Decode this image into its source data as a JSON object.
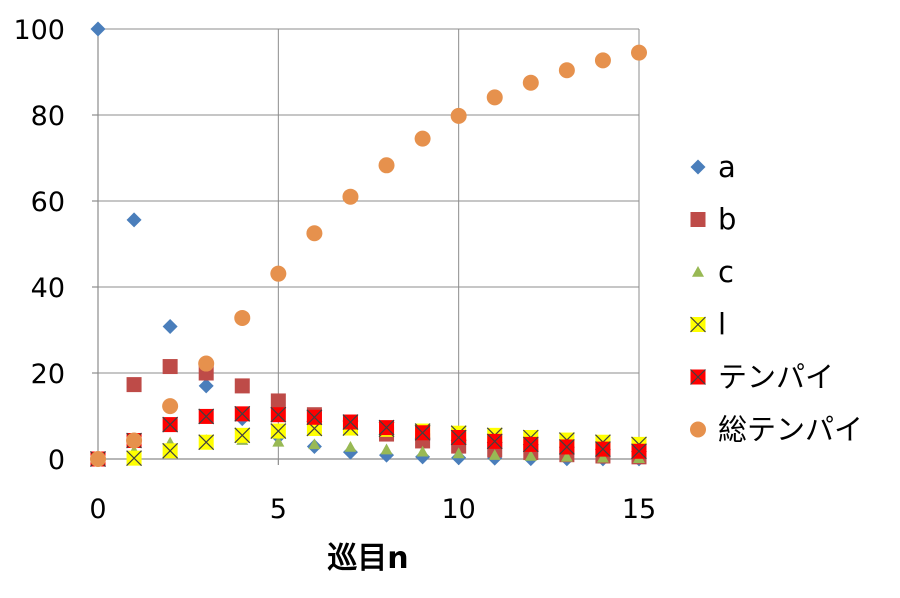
{
  "chart_data": {
    "type": "scatter",
    "title": "",
    "xlabel": "巡目n",
    "ylabel": "",
    "xlim": [
      0,
      15
    ],
    "ylim": [
      0,
      100
    ],
    "x_ticks": [
      0,
      5,
      10,
      15
    ],
    "y_ticks": [
      0,
      20,
      40,
      60,
      80,
      100
    ],
    "grid": true,
    "legend_position": "right",
    "series": [
      {
        "name": "a",
        "marker": "diamond",
        "color": "#4a7ebb",
        "x": [
          0,
          1,
          2,
          3,
          4,
          5,
          6,
          7,
          8,
          9,
          10,
          11,
          12,
          13,
          14,
          15
        ],
        "y": [
          100,
          55.6,
          30.8,
          17.0,
          9.4,
          5.2,
          2.9,
          1.6,
          0.9,
          0.5,
          0.3,
          0.2,
          0.1,
          0.05,
          0.03,
          0.02
        ]
      },
      {
        "name": "b",
        "marker": "square",
        "color": "#be4b48",
        "x": [
          0,
          1,
          2,
          3,
          4,
          5,
          6,
          7,
          8,
          9,
          10,
          11,
          12,
          13,
          14,
          15
        ],
        "y": [
          0,
          17.3,
          21.5,
          20.0,
          17.0,
          13.5,
          10.3,
          7.8,
          5.8,
          4.2,
          3.0,
          2.1,
          1.5,
          1.0,
          0.7,
          0.5
        ]
      },
      {
        "name": "c",
        "marker": "triangle",
        "color": "#98b954",
        "x": [
          0,
          1,
          2,
          3,
          4,
          5,
          6,
          7,
          8,
          9,
          10,
          11,
          12,
          13,
          14,
          15
        ],
        "y": [
          0,
          1.9,
          3.8,
          4.4,
          4.4,
          4.0,
          3.4,
          2.8,
          2.2,
          1.7,
          1.3,
          0.9,
          0.7,
          0.5,
          0.3,
          0.2
        ]
      },
      {
        "name": "l",
        "marker": "x-square",
        "color": "#ffff00",
        "x": [
          0,
          1,
          2,
          3,
          4,
          5,
          6,
          7,
          8,
          9,
          10,
          11,
          12,
          13,
          14,
          15
        ],
        "y": [
          0,
          0.2,
          1.9,
          3.9,
          5.5,
          6.5,
          7.1,
          7.2,
          6.9,
          6.5,
          6.0,
          5.5,
          5.0,
          4.4,
          3.9,
          3.4
        ]
      },
      {
        "name": "テンパイ",
        "marker": "x-square",
        "color": "#ff0000",
        "x": [
          0,
          1,
          2,
          3,
          4,
          5,
          6,
          7,
          8,
          9,
          10,
          11,
          12,
          13,
          14,
          15
        ],
        "y": [
          0,
          4.3,
          8.0,
          9.9,
          10.5,
          10.3,
          9.7,
          8.6,
          7.3,
          6.1,
          5.0,
          4.1,
          3.4,
          2.8,
          2.3,
          1.8
        ]
      },
      {
        "name": "総テンパイ",
        "marker": "circle",
        "color": "#e6914d",
        "x": [
          0,
          1,
          2,
          3,
          4,
          5,
          6,
          7,
          8,
          9,
          10,
          11,
          12,
          13,
          14,
          15
        ],
        "y": [
          0,
          4.3,
          12.3,
          22.2,
          32.8,
          43.1,
          52.5,
          61.0,
          68.3,
          74.5,
          79.8,
          84.1,
          87.5,
          90.4,
          92.7,
          94.5
        ]
      }
    ]
  }
}
